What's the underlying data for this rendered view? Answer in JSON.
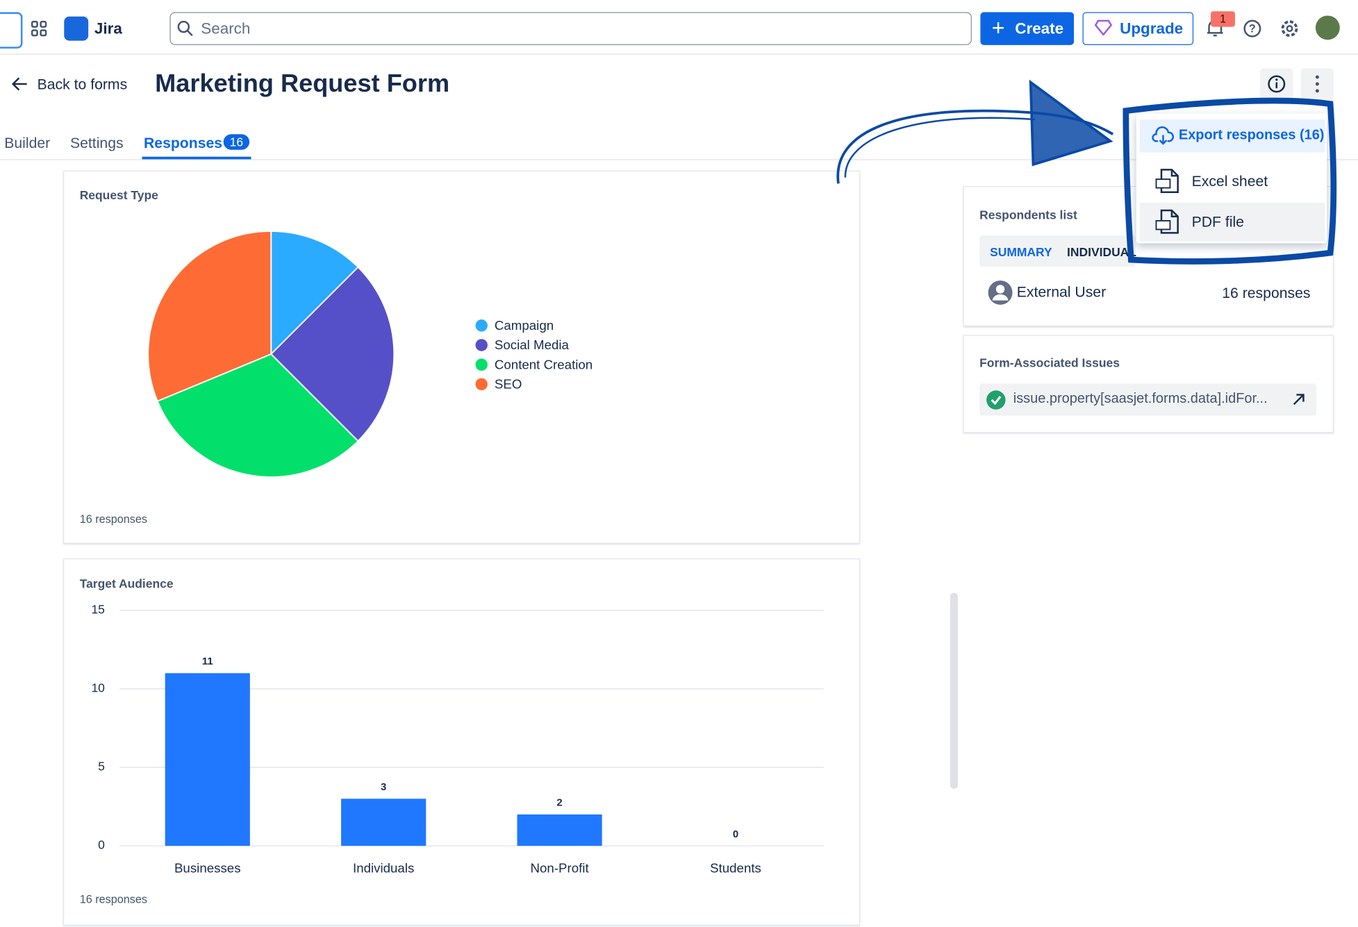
{
  "nav": {
    "product": "Jira",
    "search_placeholder": "Search",
    "create": "Create",
    "upgrade": "Upgrade",
    "notifications": 1
  },
  "page": {
    "back": "Back to forms",
    "title": "Marketing Request Form",
    "tabs": [
      "Builder",
      "Settings",
      "Responses"
    ],
    "responses_badge": 16
  },
  "chart_data": [
    {
      "type": "pie",
      "title": "Request Type",
      "categories": [
        "Campaign",
        "Social Media",
        "Content Creation",
        "SEO"
      ],
      "values": [
        2,
        4,
        5,
        5
      ],
      "colors": [
        "#2aabff",
        "#5650c8",
        "#02e06b",
        "#ff6b35"
      ],
      "footer": "16 responses"
    },
    {
      "type": "bar",
      "title": "Target Audience",
      "categories": [
        "Businesses",
        "Individuals",
        "Non-Profit",
        "Students"
      ],
      "values": [
        11,
        3,
        2,
        0
      ],
      "color": "#1f78ff",
      "ylim": [
        0,
        15
      ],
      "yticks": [
        0,
        5,
        10,
        15
      ],
      "grid": true,
      "footer": "16 responses"
    }
  ],
  "sidebar": {
    "respondents": {
      "title": "Respondents list",
      "tabs": [
        "SUMMARY",
        "INDIVIDUAL"
      ],
      "user": "External User",
      "count": "16 responses"
    },
    "issues": {
      "title": "Form-Associated Issues",
      "item": "issue.property[saasjet.forms.data].idFor..."
    }
  },
  "menu": {
    "header": "Export responses (16)",
    "items": [
      "Excel sheet",
      "PDF file"
    ]
  }
}
